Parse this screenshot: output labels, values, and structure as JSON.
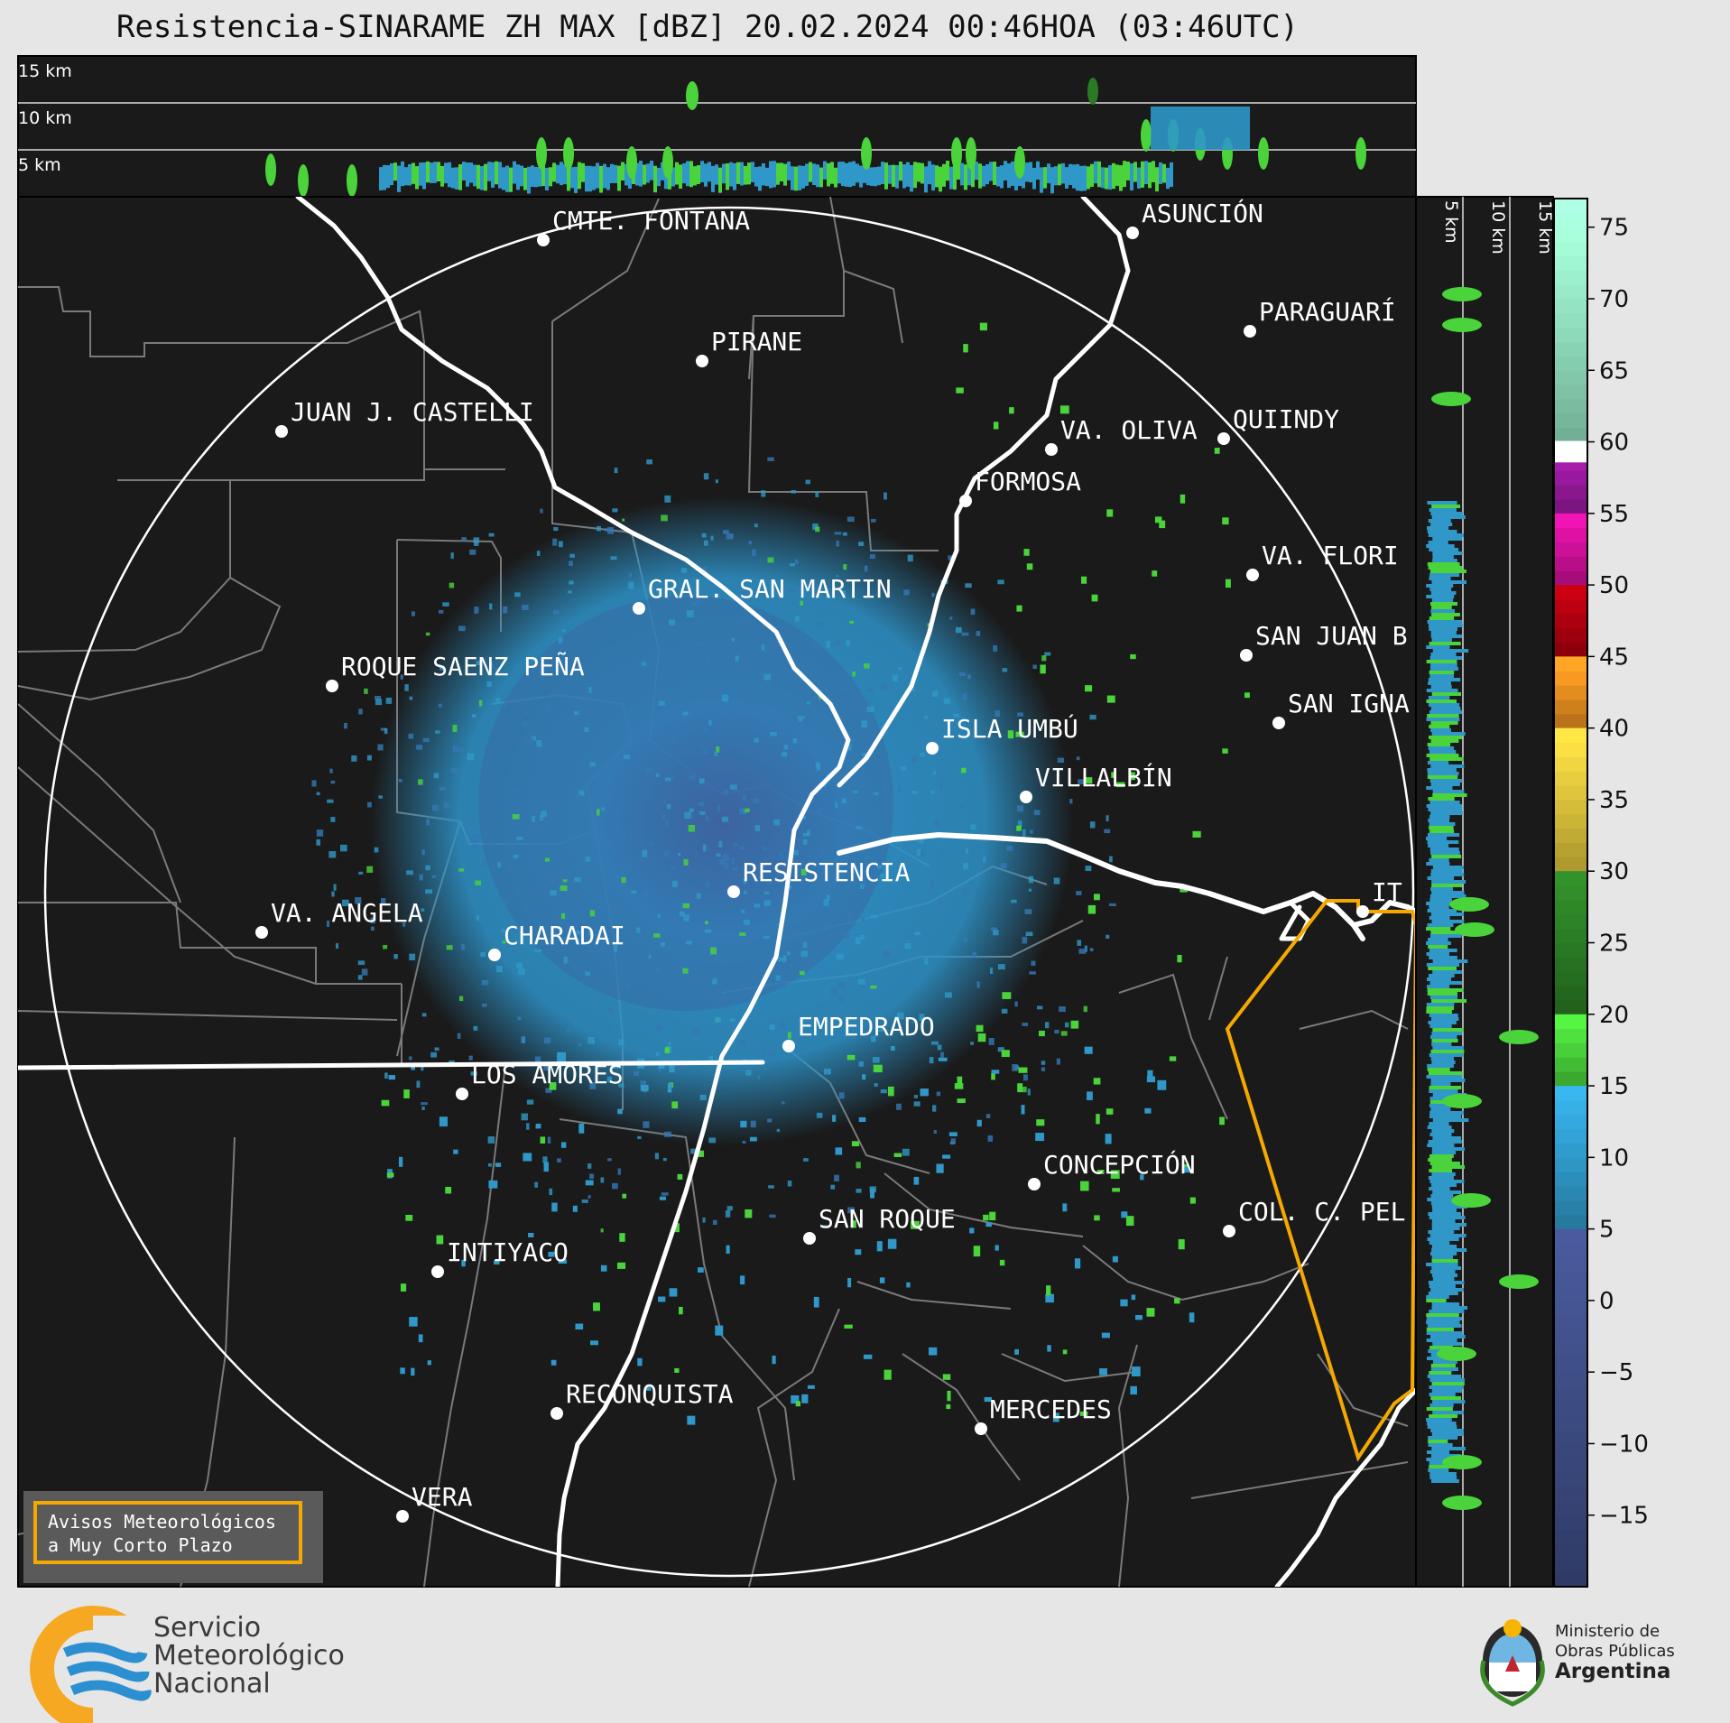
{
  "title": "Resistencia-SINARAME ZH MAX [dBZ] 20.02.2024 00:46HOA (03:46UTC)",
  "top_profile": {
    "height_labels": [
      "15 km",
      "10 km",
      "5 km"
    ]
  },
  "side_profile": {
    "height_labels": [
      "5 km",
      "10 km",
      "15 km"
    ]
  },
  "colorbar": {
    "unit": "dBZ",
    "ticks": [
      "75",
      "70",
      "65",
      "60",
      "55",
      "50",
      "45",
      "40",
      "35",
      "30",
      "25",
      "20",
      "15",
      "10",
      "5",
      "0",
      "−5",
      "−10",
      "−15"
    ],
    "colors": {
      "above_60": "#8fdcbc",
      "55_60": "#9b1aa0",
      "50_55": "#d0109a",
      "45_50": "#b0000e",
      "40_45": "#e89020",
      "30_40": "#d9c03a",
      "20_30": "#2a7a24",
      "15_20": "#4ad33a",
      "5_15": "#2f98c8",
      "below_5": "#3b4a80"
    }
  },
  "map": {
    "range_ring": "white circle",
    "cities": [
      "CMTE. FONTANA",
      "ASUNCIÓN",
      "PARAGUARÍ",
      "PIRANE",
      "JUAN J. CASTELLI",
      "VA. OLIVA",
      "QUIINDY",
      "FORMOSA",
      "VA. FLORI",
      "GRAL. SAN MARTIN",
      "SAN JUAN B",
      "ROQUE SAENZ PEÑA",
      "SAN IGNA",
      "ISLA UMBÚ",
      "VILLALBÍN",
      "RESISTENCIA",
      "IT",
      "VA. ANGELA",
      "CHARADAI",
      "EMPEDRADO",
      "LOS AMORES",
      "CONCEPCIÓN",
      "SAN ROQUE",
      "COL. C. PEL",
      "INTIYACO",
      "RECONQUISTA",
      "MERCEDES",
      "VERA"
    ],
    "colors": {
      "background": "#1a1a1a",
      "borders": "#7a7a7a",
      "rivers": "#ffffff",
      "warning_polygon": "#f5a800"
    }
  },
  "warning_box": {
    "line1": "Avisos Meteorológicos",
    "line2": "a Muy Corto Plazo"
  },
  "logos": {
    "smn": {
      "line1": "Servicio",
      "line2": "Meteorológico",
      "line3": "Nacional"
    },
    "ministry": {
      "line1": "Ministerio de",
      "line2": "Obras Públicas",
      "line3": "Argentina"
    }
  }
}
